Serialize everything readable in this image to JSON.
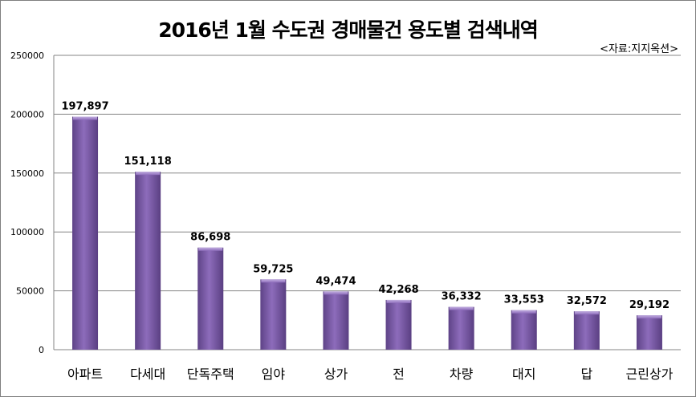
{
  "chart_data": {
    "type": "bar",
    "title": "2016년 1월 수도권 경매물건 용도별 검색내역",
    "source_note": "<자료:지지옥션>",
    "categories": [
      "아파트",
      "다세대",
      "단독주택",
      "임야",
      "상가",
      "전",
      "차량",
      "대지",
      "답",
      "근린상가"
    ],
    "values": [
      197897,
      151118,
      86698,
      59725,
      49474,
      42268,
      36332,
      33553,
      32572,
      29192
    ],
    "data_labels": [
      "197,897",
      "151,118",
      "86,698",
      "59,725",
      "49,474",
      "42,268",
      "36,332",
      "33,553",
      "32,572",
      "29,192"
    ],
    "ylim": [
      0,
      250000
    ],
    "yticks": [
      "0",
      "50000",
      "100000",
      "150000",
      "200000",
      "250000"
    ],
    "grid": true,
    "legend": "none",
    "bar_color": "#7b5aa6"
  }
}
